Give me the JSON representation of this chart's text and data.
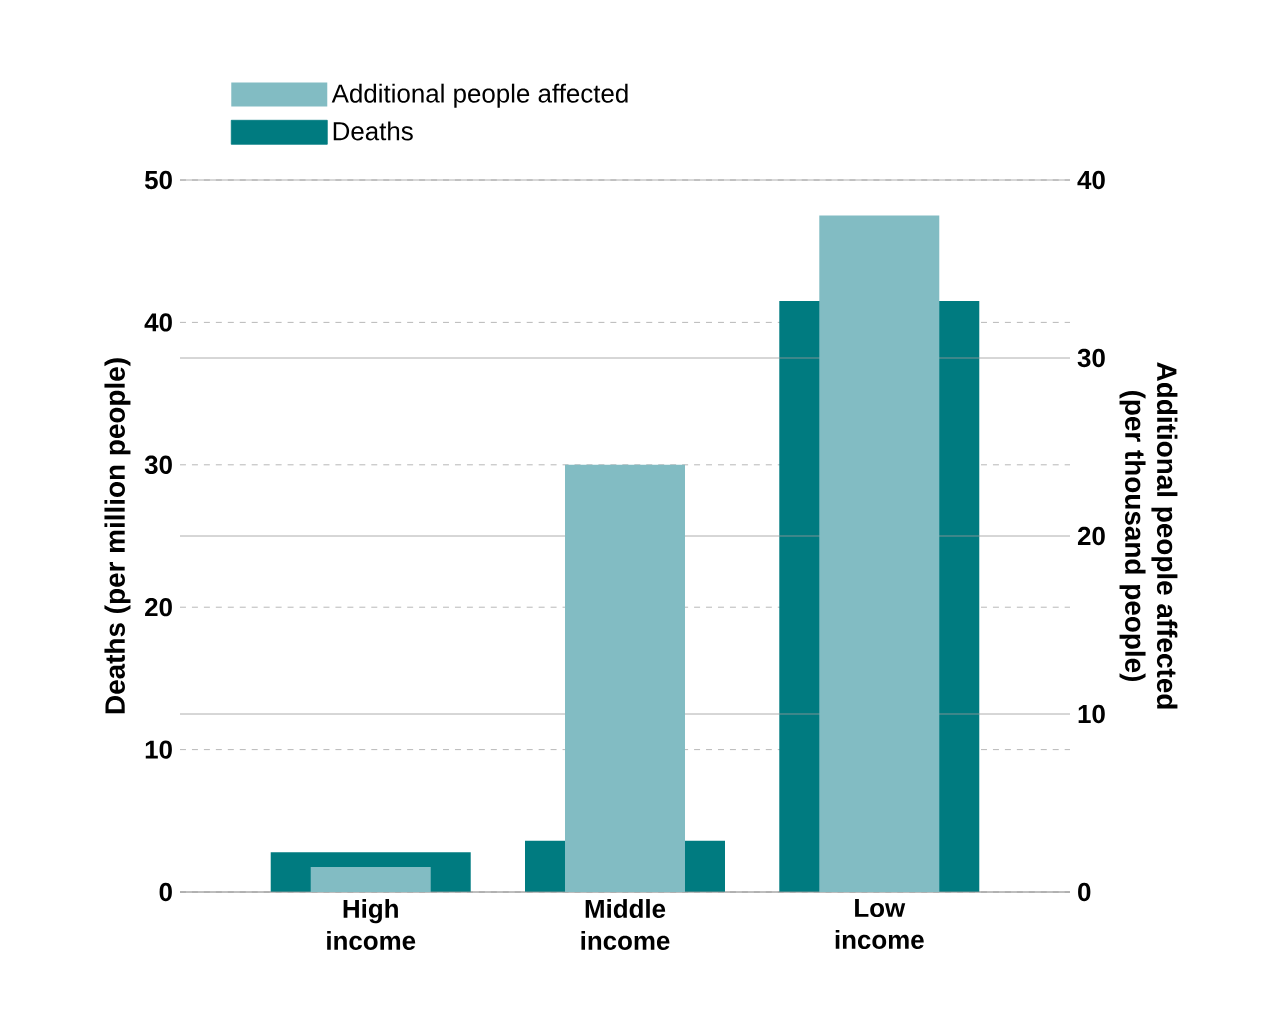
{
  "chart_data": {
    "type": "bar",
    "categories": [
      "High income",
      "Middle income",
      "Low income"
    ],
    "ylabel": "Deaths (per million people)",
    "y2label": "Additional people affected (per thousand people)",
    "series": [
      {
        "name": "Additional people affected",
        "color": "#82bcc3",
        "values": [
          1.4,
          24.0,
          38.0
        ],
        "axis": "y2"
      },
      {
        "name": "Deaths",
        "color": "#007b80",
        "values": [
          2.8,
          3.6,
          41.5
        ]
      }
    ],
    "ylim": [
      0,
      50
    ],
    "yticks": [
      0,
      10,
      20,
      30,
      40,
      50
    ],
    "y2lim": [
      0,
      40
    ],
    "y2ticks": [
      0,
      10,
      20,
      30,
      40
    ],
    "grid": true,
    "legend": "top left"
  }
}
